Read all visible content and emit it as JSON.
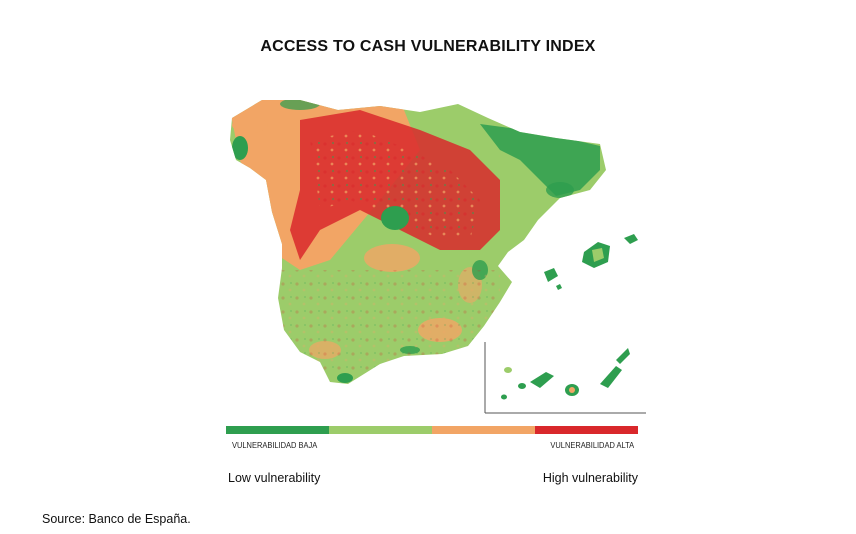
{
  "title": "ACCESS TO CASH VULNERABILITY INDEX",
  "legend": {
    "colors": [
      "#2e9e4f",
      "#9ccc6a",
      "#f2a565",
      "#d9282b"
    ],
    "low_label_es": "VULNERABILIDAD BAJA",
    "high_label_es": "VULNERABILIDAD ALTA",
    "low_label_en": "Low vulnerability",
    "high_label_en": "High vulnerability"
  },
  "source": "Source: Banco de España."
}
